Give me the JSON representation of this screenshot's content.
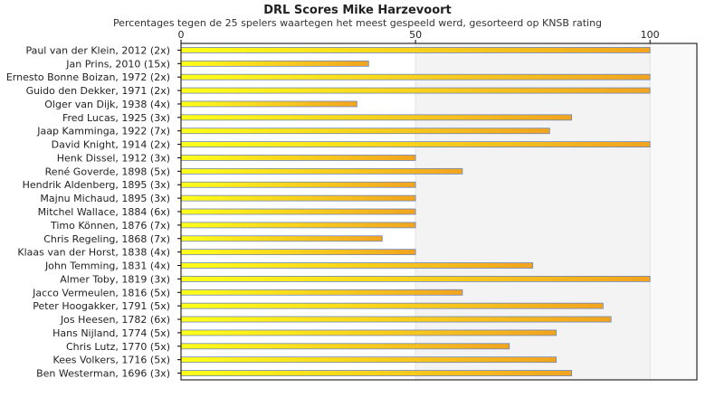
{
  "chart_data": {
    "type": "bar",
    "orientation": "horizontal",
    "title": "DRL Scores Mike Harzevoort",
    "subtitle": "Percentages tegen de 25 spelers waartegen het meest gespeeld werd, gesorteerd op KNSB rating",
    "categories": [
      "Paul van der Klein, 2012 (2x)",
      "Jan Prins, 2010 (15x)",
      "Ernesto Bonne Boizan, 1972 (2x)",
      "Guido den Dekker, 1971 (2x)",
      "Olger van Dijk, 1938 (4x)",
      "Fred Lucas, 1925 (3x)",
      "Jaap Kamminga, 1922 (7x)",
      "David Knight, 1914 (2x)",
      "Henk Dissel, 1912 (3x)",
      "René Goverde, 1898 (5x)",
      "Hendrik Aldenberg, 1895 (3x)",
      "Majnu Michaud, 1895 (3x)",
      "Mitchel Wallace, 1884 (6x)",
      "Timo Können, 1876 (7x)",
      "Chris Regeling, 1868 (7x)",
      "Klaas van der Horst, 1838 (4x)",
      "John Temming, 1831 (4x)",
      "Almer Toby, 1819 (3x)",
      "Jacco Vermeulen, 1816 (5x)",
      "Peter Hoogakker, 1791 (5x)",
      "Jos Heesen, 1782 (6x)",
      "Hans Nijland, 1774 (5x)",
      "Chris Lutz, 1770 (5x)",
      "Kees Volkers, 1716 (5x)",
      "Ben Westerman, 1696 (3x)"
    ],
    "values": [
      100,
      40,
      100,
      100,
      37.5,
      83.3,
      78.6,
      100,
      50,
      60,
      50,
      50,
      50,
      50,
      42.9,
      50,
      75,
      100,
      60,
      90,
      91.7,
      80,
      70,
      80,
      83.3
    ],
    "xlim": [
      0,
      110
    ],
    "xticks": [
      0,
      50,
      100
    ],
    "xtick_labels": [
      "0",
      "50",
      "100"
    ],
    "axis_position": "top",
    "grid": true,
    "colors": {
      "bar_start": "#ffff1a",
      "bar_end": "#f2a41f",
      "bar_stroke": "#6f86b8",
      "band_light": "#f3f3f3",
      "band_lighter": "#f9f9f9",
      "frame": "#000000"
    }
  }
}
